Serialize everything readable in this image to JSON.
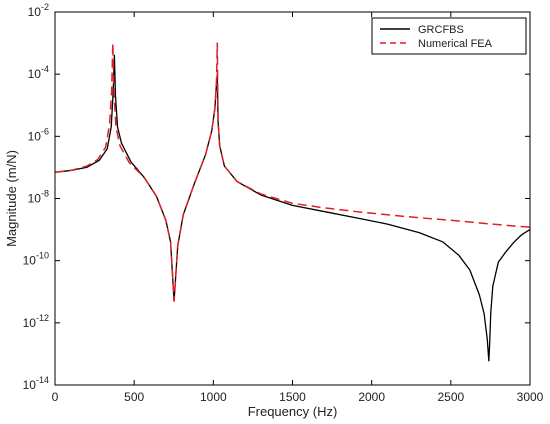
{
  "chart_data": {
    "type": "line",
    "title": "",
    "xlabel": "Frequency (Hz)",
    "ylabel": "Magnitude (m/N)",
    "xlim": [
      0,
      3000
    ],
    "ylim": [
      1e-14,
      0.01
    ],
    "yscale": "log",
    "grid": false,
    "legend_position": "top-right",
    "x_ticks": [
      0,
      500,
      1000,
      1500,
      2000,
      2500,
      3000
    ],
    "y_ticks": [
      1e-14,
      1e-12,
      1e-10,
      1e-08,
      1e-06,
      0.0001,
      0.01
    ],
    "x_tick_labels": [
      "0",
      "500",
      "1000",
      "1500",
      "2000",
      "2500",
      "3000"
    ],
    "y_tick_labels": [
      {
        "base": "10",
        "exp": "-14"
      },
      {
        "base": "10",
        "exp": "-12"
      },
      {
        "base": "10",
        "exp": "-10"
      },
      {
        "base": "10",
        "exp": "-8"
      },
      {
        "base": "10",
        "exp": "-6"
      },
      {
        "base": "10",
        "exp": "-4"
      },
      {
        "base": "10",
        "exp": "-2"
      }
    ],
    "series": [
      {
        "name": "GRCFBS",
        "color": "#000000",
        "style": "solid",
        "x": [
          0,
          100,
          200,
          280,
          330,
          355,
          368,
          375,
          382,
          395,
          420,
          480,
          560,
          640,
          700,
          730,
          745,
          752,
          760,
          775,
          810,
          880,
          950,
          990,
          1010,
          1020,
          1025,
          1030,
          1040,
          1070,
          1150,
          1300,
          1500,
          1700,
          1900,
          2100,
          2300,
          2450,
          2550,
          2620,
          2680,
          2710,
          2730,
          2740,
          2745,
          2752,
          2765,
          2800,
          2850,
          2900,
          2950,
          3000
        ],
        "y": [
          7e-08,
          8e-08,
          1e-07,
          1.7e-07,
          4e-07,
          2e-06,
          3e-05,
          0.0004,
          2e-05,
          2e-06,
          6e-07,
          1.5e-07,
          5e-08,
          1.2e-08,
          2e-09,
          4e-10,
          2e-11,
          5e-12,
          2e-11,
          3e-10,
          3e-09,
          3e-08,
          2.5e-07,
          1.5e-06,
          8e-06,
          5e-05,
          0.0001,
          3e-06,
          5e-07,
          1.1e-07,
          3.5e-08,
          1.3e-08,
          6e-09,
          3.8e-09,
          2.4e-09,
          1.5e-09,
          8e-10,
          4e-10,
          1.5e-10,
          5e-11,
          8e-12,
          2e-12,
          3e-13,
          6e-14,
          2e-13,
          2e-12,
          1.5e-11,
          9e-11,
          2e-10,
          4e-10,
          7e-10,
          1e-09
        ]
      },
      {
        "name": "Numerical FEA",
        "color": "#dd1f26",
        "style": "dashed",
        "x": [
          0,
          100,
          200,
          270,
          320,
          345,
          358,
          365,
          372,
          385,
          410,
          470,
          560,
          640,
          700,
          730,
          745,
          752,
          760,
          775,
          810,
          880,
          950,
          990,
          1010,
          1020,
          1025,
          1030,
          1040,
          1070,
          1150,
          1300,
          1500,
          1700,
          1900,
          2100,
          2300,
          2500,
          2700,
          2900,
          3000
        ],
        "y": [
          7e-08,
          8e-08,
          1.1e-07,
          1.8e-07,
          4.5e-07,
          2.5e-06,
          3e-05,
          0.001,
          3e-05,
          2e-06,
          5e-07,
          1.4e-07,
          5e-08,
          1.2e-08,
          2e-09,
          4e-10,
          2e-11,
          5e-12,
          2e-11,
          3e-10,
          3e-09,
          3e-08,
          2.5e-07,
          1.5e-06,
          8e-06,
          6e-05,
          0.001,
          3e-06,
          5e-07,
          1.1e-07,
          3.5e-08,
          1.4e-08,
          7e-09,
          5e-09,
          3.8e-09,
          3e-09,
          2.4e-09,
          2e-09,
          1.6e-09,
          1.3e-09,
          1.2e-09
        ]
      }
    ]
  }
}
